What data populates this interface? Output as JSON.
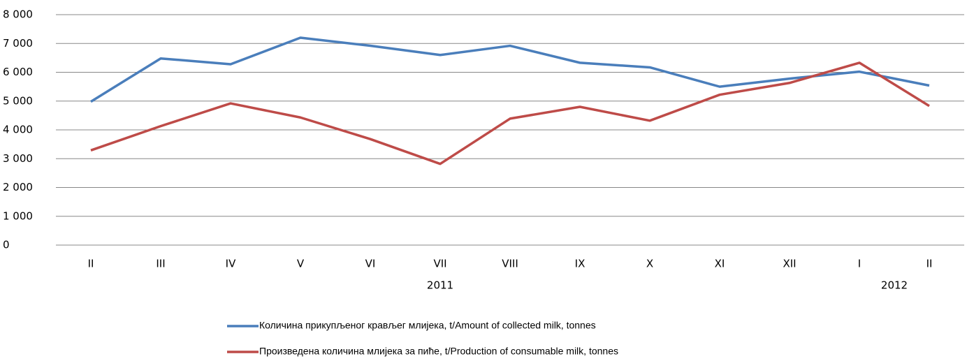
{
  "chart_data": {
    "type": "line",
    "categories": [
      "II",
      "III",
      "IV",
      "V",
      "VI",
      "VII",
      "VIII",
      "IX",
      "X",
      "XI",
      "XII",
      "I",
      "II"
    ],
    "category_groups": [
      {
        "label": "2011",
        "start": 0,
        "end": 10
      },
      {
        "label": "2012",
        "start": 11,
        "end": 12
      }
    ],
    "series": [
      {
        "name": "Количина прикупљеног крављег млијека, t/Amount of collected milk, tonnes",
        "color": "#4a7ebb",
        "values": [
          4980,
          6480,
          6280,
          7200,
          6920,
          6600,
          6920,
          6330,
          6170,
          5500,
          5780,
          6020,
          5540
        ]
      },
      {
        "name": "Произведена количина млијека за пиће, t/Production of consumable milk, tonnes",
        "color": "#be4b48",
        "values": [
          3290,
          4130,
          4920,
          4430,
          3680,
          2820,
          4390,
          4800,
          4320,
          5220,
          5630,
          6330,
          4830
        ]
      }
    ],
    "ylim": [
      0,
      8000
    ],
    "yticks": [
      0,
      {
        "value": 1000,
        "label": "1 000"
      },
      {
        "value": 2000,
        "label": "2 000"
      },
      {
        "value": 3000,
        "label": "3 000"
      },
      {
        "value": 4000,
        "label": "4 000"
      },
      {
        "value": 5000,
        "label": "5 000"
      },
      {
        "value": 6000,
        "label": "6 000"
      },
      {
        "value": 7000,
        "label": "7 000"
      },
      {
        "value": 8000,
        "label": "8 000"
      }
    ],
    "grid": true
  }
}
